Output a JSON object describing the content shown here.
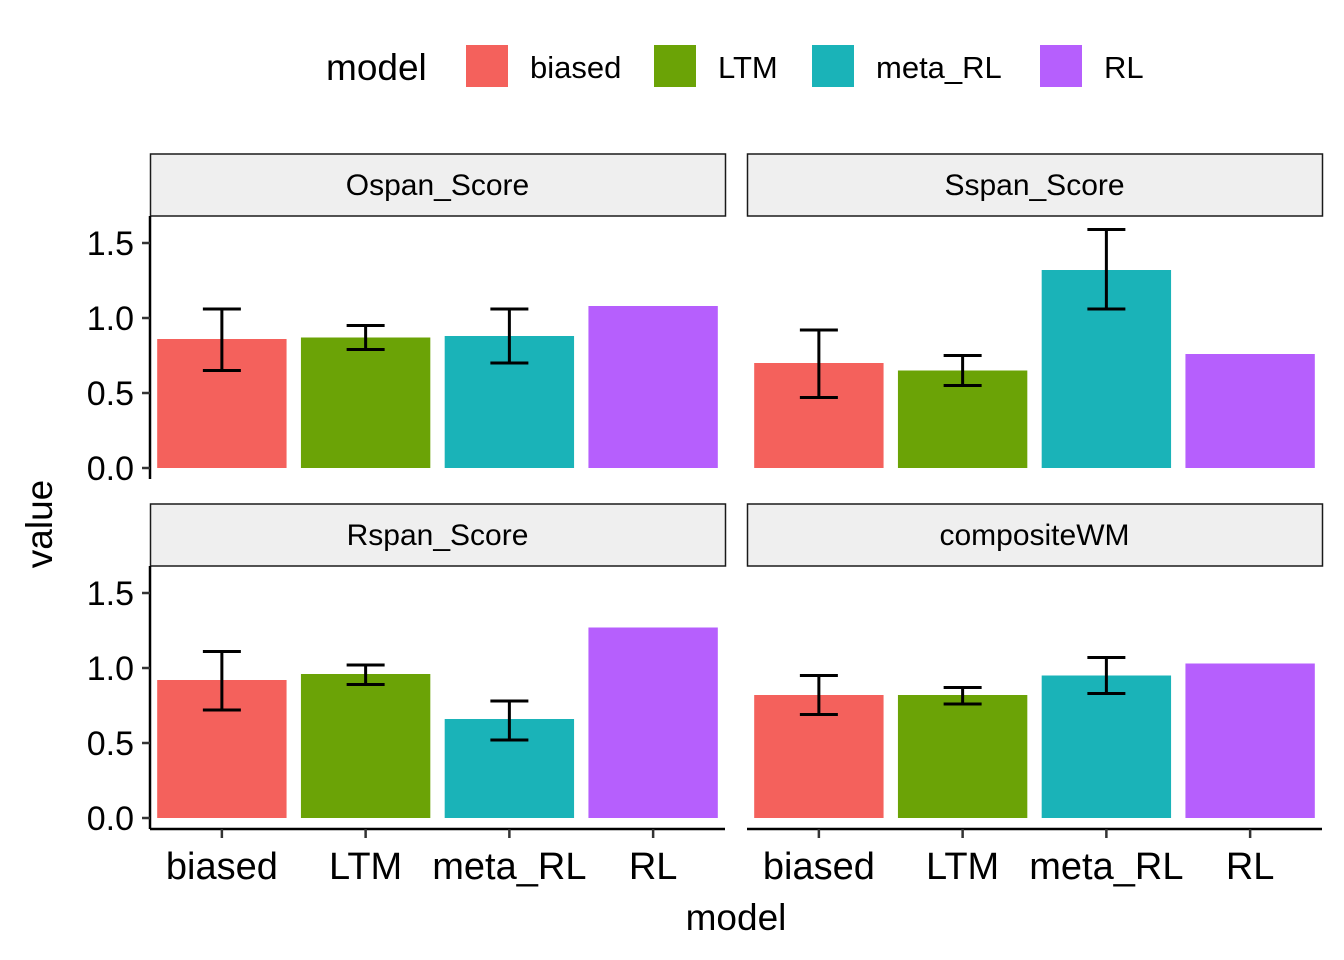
{
  "chart_data": {
    "type": "bar",
    "facet_layout": "2x2",
    "xlabel": "model",
    "ylabel": "value",
    "ylim": [
      0,
      1.65
    ],
    "yticks": [
      0.0,
      0.5,
      1.0,
      1.5
    ],
    "ytick_labels": [
      "0.0",
      "0.5",
      "1.0",
      "1.5"
    ],
    "grid": false,
    "legend": {
      "title": "model",
      "position": "top",
      "items": [
        {
          "label": "biased",
          "color": "#F8766D"
        },
        {
          "label": "LTM",
          "color": "#7CAE00"
        },
        {
          "label": "meta_RL",
          "color": "#00BFC4"
        },
        {
          "label": "RL",
          "color": "#C77CFF"
        }
      ]
    },
    "categories": [
      "biased",
      "LTM",
      "meta_RL",
      "RL"
    ],
    "colors": [
      "#F4615C",
      "#6BA306",
      "#1AB3B8",
      "#B65FFD"
    ],
    "panels": [
      {
        "title": "Ospan_Score",
        "values": [
          0.86,
          0.87,
          0.88,
          1.08
        ],
        "err_low": [
          0.65,
          0.79,
          0.7,
          null
        ],
        "err_high": [
          1.06,
          0.95,
          1.06,
          null
        ]
      },
      {
        "title": "Sspan_Score",
        "values": [
          0.7,
          0.65,
          1.32,
          0.76
        ],
        "err_low": [
          0.47,
          0.55,
          1.06,
          null
        ],
        "err_high": [
          0.92,
          0.75,
          1.59,
          null
        ]
      },
      {
        "title": "Rspan_Score",
        "values": [
          0.92,
          0.96,
          0.66,
          1.27
        ],
        "err_low": [
          0.72,
          0.89,
          0.52,
          null
        ],
        "err_high": [
          1.11,
          1.02,
          0.78,
          null
        ]
      },
      {
        "title": "compositeWM",
        "values": [
          0.82,
          0.82,
          0.95,
          1.03
        ],
        "err_low": [
          0.69,
          0.76,
          0.83,
          null
        ],
        "err_high": [
          0.95,
          0.87,
          1.07,
          null
        ]
      }
    ]
  }
}
